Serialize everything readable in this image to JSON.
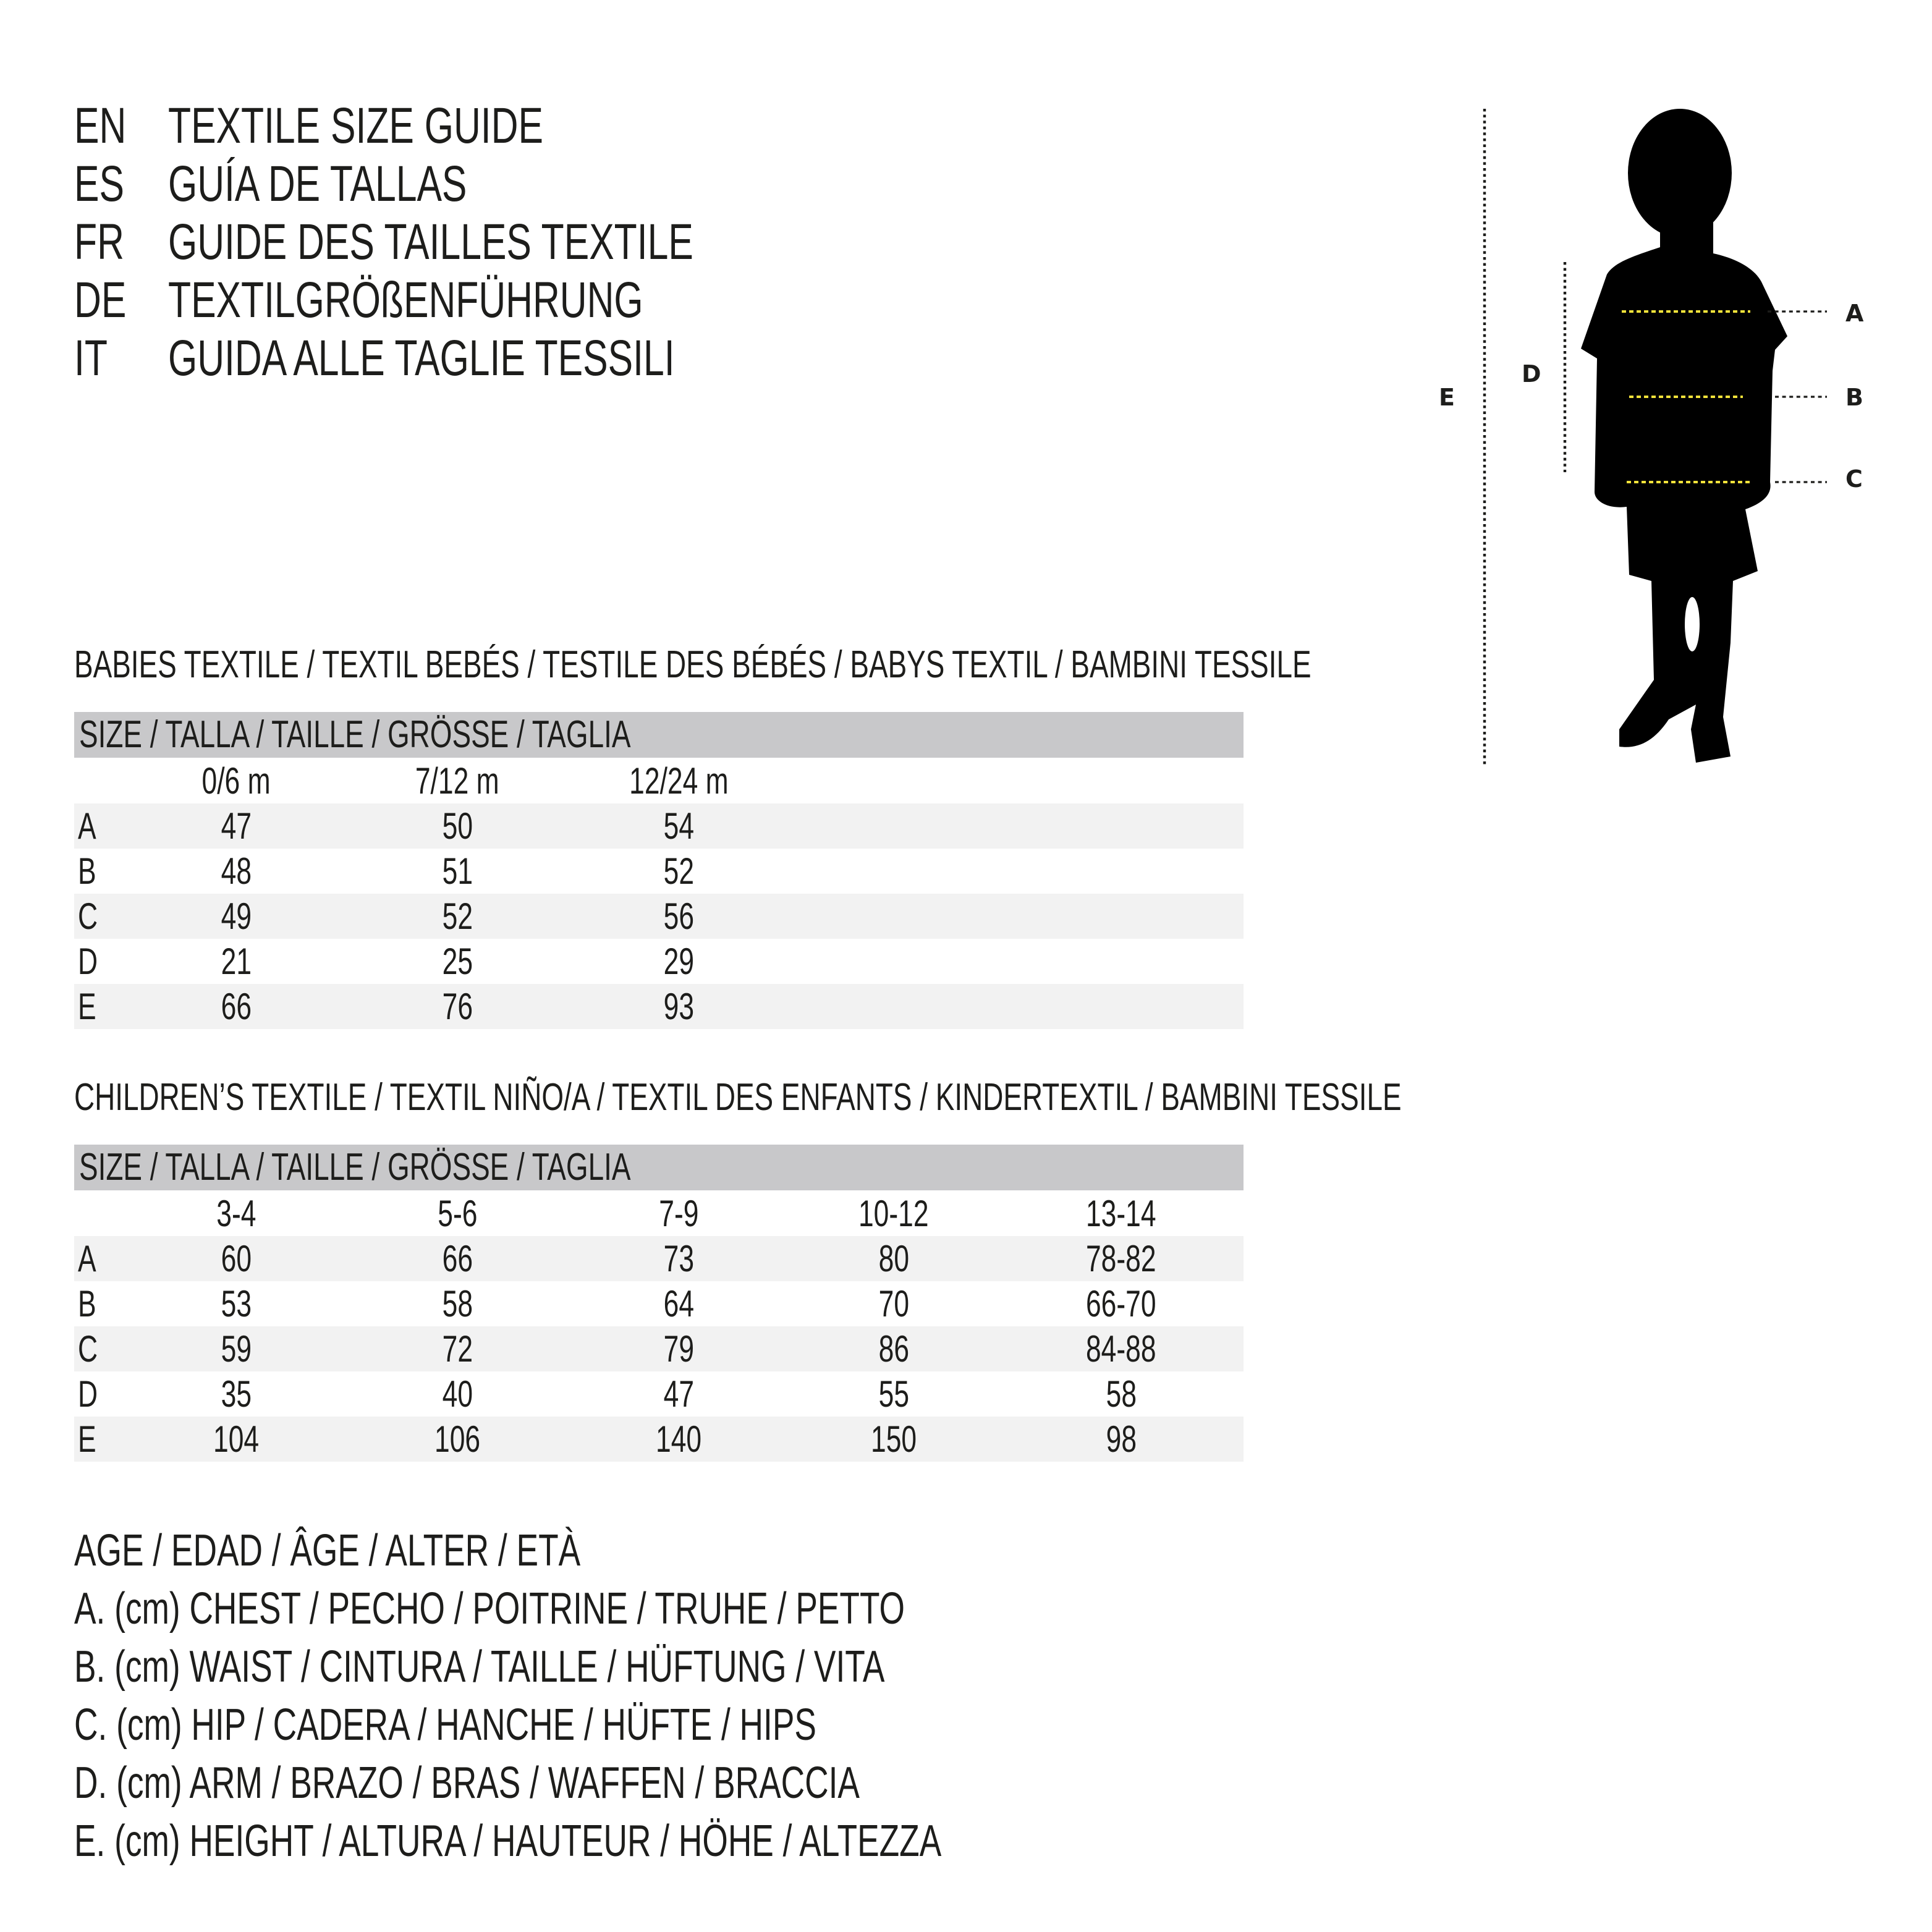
{
  "titles": [
    {
      "code": "EN",
      "text": "TEXTILE SIZE GUIDE"
    },
    {
      "code": "ES",
      "text": "GUÍA DE TALLAS"
    },
    {
      "code": "FR",
      "text": "GUIDE DES TAILLES TEXTILE"
    },
    {
      "code": "DE",
      "text": "TEXTILGRÖßENFÜHRUNG"
    },
    {
      "code": "IT",
      "text": "GUIDA ALLE TAGLIE TESSILI"
    }
  ],
  "figure": {
    "labels": {
      "A": "A",
      "B": "B",
      "C": "C",
      "D": "D",
      "E": "E"
    },
    "colors": {
      "silhouette": "#000000",
      "measure_line": "#f2e23a",
      "guide_line": "#1d1d1b"
    }
  },
  "babies": {
    "heading": "BABIES TEXTILE / TEXTIL BEBÉS / TESTILE DES BÉBÉS / BABYS TEXTIL / BAMBINI TESSILE",
    "size_header": "SIZE / TALLA / TAILLE / GRÖSSE / TAGLIA",
    "columns": [
      "0/6 m",
      "7/12 m",
      "12/24 m"
    ],
    "rows": [
      {
        "label": "A",
        "values": [
          "47",
          "50",
          "54"
        ]
      },
      {
        "label": "B",
        "values": [
          "48",
          "51",
          "52"
        ]
      },
      {
        "label": "C",
        "values": [
          "49",
          "52",
          "56"
        ]
      },
      {
        "label": "D",
        "values": [
          "21",
          "25",
          "29"
        ]
      },
      {
        "label": "E",
        "values": [
          "66",
          "76",
          "93"
        ]
      }
    ]
  },
  "children": {
    "heading": "CHILDREN’S TEXTILE / TEXTIL NIÑO/A / TEXTIL DES ENFANTS / KINDERTEXTIL / BAMBINI TESSILE",
    "size_header": "SIZE / TALLA / TAILLE / GRÖSSE / TAGLIA",
    "columns": [
      "3-4",
      "5-6",
      "7-9",
      "10-12",
      "13-14"
    ],
    "rows": [
      {
        "label": "A",
        "values": [
          "60",
          "66",
          "73",
          "80",
          "78-82"
        ]
      },
      {
        "label": "B",
        "values": [
          "53",
          "58",
          "64",
          "70",
          "66-70"
        ]
      },
      {
        "label": "C",
        "values": [
          "59",
          "72",
          "79",
          "86",
          "84-88"
        ]
      },
      {
        "label": "D",
        "values": [
          "35",
          "40",
          "47",
          "55",
          "58"
        ]
      },
      {
        "label": "E",
        "values": [
          "104",
          "106",
          "140",
          "150",
          "98"
        ]
      }
    ]
  },
  "legend": [
    "AGE / EDAD / ÂGE / ALTER / ETÀ",
    "A. (cm) CHEST / PECHO / POITRINE / TRUHE / PETTO",
    "B. (cm) WAIST / CINTURA / TAILLE / HÜFTUNG / VITA",
    "C. (cm) HIP / CADERA / HANCHE / HÜFTE / HIPS",
    "D. (cm) ARM / BRAZO / BRAS / WAFFEN / BRACCIA",
    "E. (cm) HEIGHT / ALTURA / HAUTEUR / HÖHE / ALTEZZA"
  ]
}
